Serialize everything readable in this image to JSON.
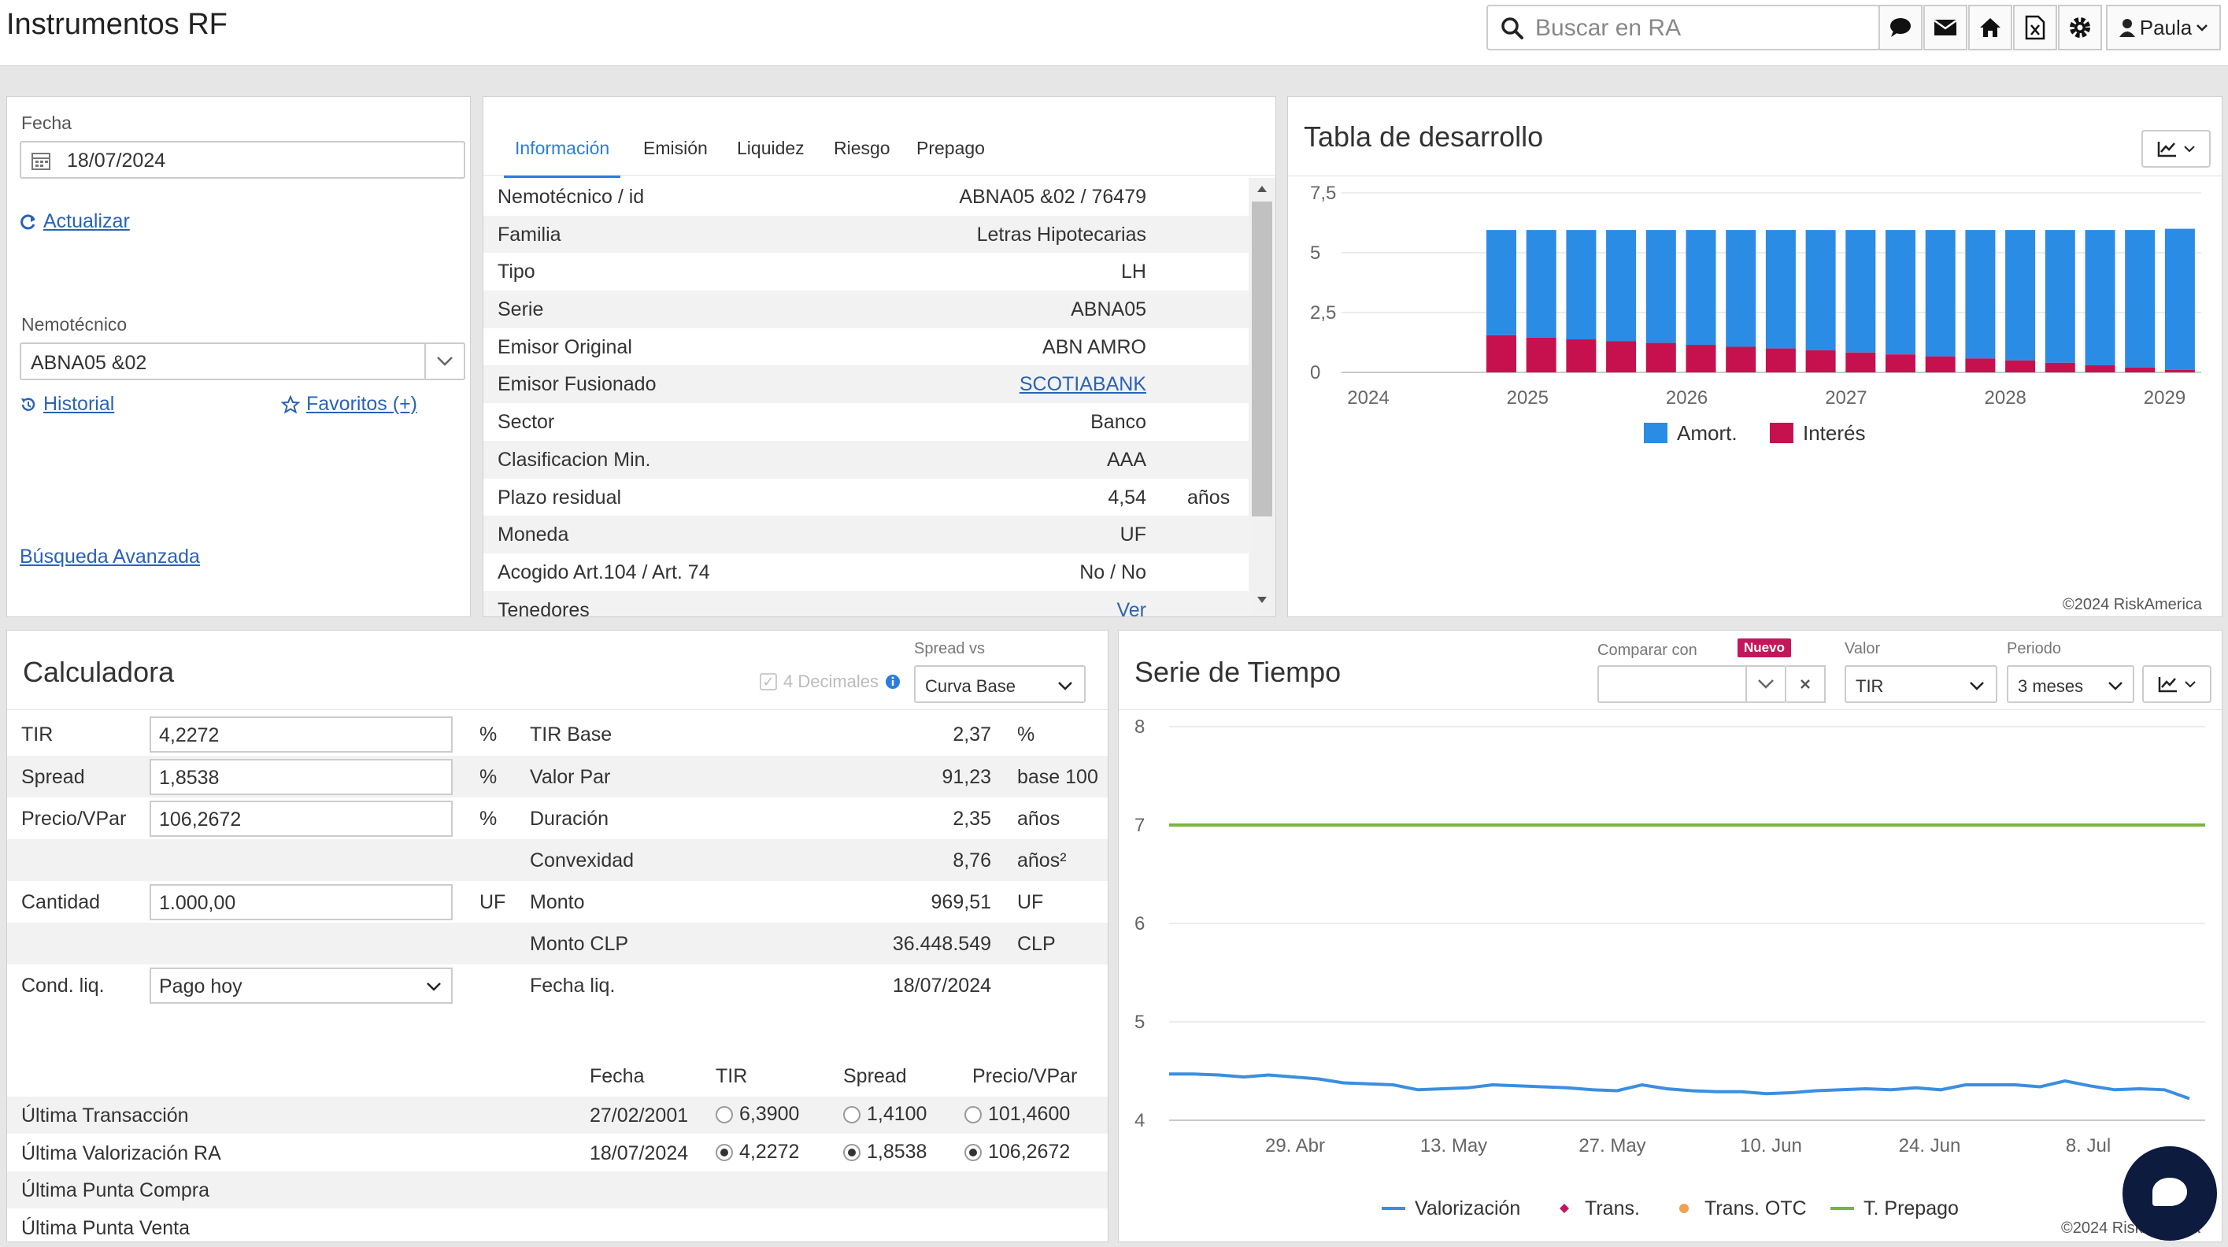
{
  "header": {
    "title": "Instrumentos RF",
    "search_placeholder": "Buscar en RA",
    "user": "Paula",
    "icons": [
      "chat-icon",
      "mail-icon",
      "home-icon",
      "excel-icon",
      "gear-icon"
    ]
  },
  "left": {
    "fecha_label": "Fecha",
    "fecha": "18/07/2024",
    "actualizar": "Actualizar",
    "nemotecnico_label": "Nemotécnico",
    "nemotecnico": "ABNA05 &02",
    "historial": "Historial",
    "favoritos": "Favoritos (+)",
    "busqueda": "Búsqueda Avanzada"
  },
  "info": {
    "tabs": [
      "Información",
      "Emisión",
      "Liquidez",
      "Riesgo",
      "Prepago"
    ],
    "rows": [
      {
        "k": "Nemotécnico / id",
        "v": "ABNA05 &02 / 76479",
        "u": ""
      },
      {
        "k": "Familia",
        "v": "Letras Hipotecarias",
        "u": ""
      },
      {
        "k": "Tipo",
        "v": "LH",
        "u": ""
      },
      {
        "k": "Serie",
        "v": "ABNA05",
        "u": ""
      },
      {
        "k": "Emisor Original",
        "v": "ABN AMRO",
        "u": ""
      },
      {
        "k": "Emisor Fusionado",
        "v": "SCOTIABANK",
        "u": "",
        "link": true
      },
      {
        "k": "Sector",
        "v": "Banco",
        "u": ""
      },
      {
        "k": "Clasificacion Min.",
        "v": "AAA",
        "u": ""
      },
      {
        "k": "Plazo residual",
        "v": "4,54",
        "u": "años"
      },
      {
        "k": "Moneda",
        "v": "UF",
        "u": ""
      },
      {
        "k": "Acogido Art.104 / Art. 74",
        "v": "No / No",
        "u": ""
      },
      {
        "k": "Tenedores",
        "v": "Ver",
        "u": "",
        "link": true
      }
    ]
  },
  "desarrollo": {
    "title": "Tabla de desarrollo",
    "credit": "©2024 RiskAmerica",
    "colors": {
      "amort": "#2b8ce6",
      "interes": "#c7114f"
    },
    "chart_data": {
      "type": "bar",
      "stacked": true,
      "x_ticks": [
        "2024",
        "2025",
        "2026",
        "2027",
        "2028",
        "2029"
      ],
      "y_ticks": [
        "0",
        "2,5",
        "5",
        "7,5"
      ],
      "ylim": [
        0,
        7.5
      ],
      "legend": [
        "Amort.",
        "Interés"
      ],
      "total": [
        5.95,
        5.95,
        5.95,
        5.95,
        5.95,
        5.95,
        5.95,
        5.95,
        5.95,
        5.95,
        5.95,
        5.95,
        5.95,
        5.95,
        5.95,
        5.95,
        5.95,
        6.0
      ],
      "interes": [
        1.55,
        1.45,
        1.38,
        1.3,
        1.23,
        1.15,
        1.07,
        1.0,
        0.92,
        0.83,
        0.75,
        0.67,
        0.58,
        0.5,
        0.4,
        0.3,
        0.2,
        0.1
      ]
    }
  },
  "calc": {
    "title": "Calculadora",
    "decimales": "4 Decimales",
    "spread_vs_label": "Spread vs",
    "spread_vs": "Curva Base",
    "rows": [
      {
        "label": "TIR",
        "input": "4,2272",
        "unit": "%",
        "k": "TIR Base",
        "v": "2,37",
        "u": "%"
      },
      {
        "label": "Spread",
        "input": "1,8538",
        "unit": "%",
        "k": "Valor Par",
        "v": "91,23",
        "u": "base 100"
      },
      {
        "label": "Precio/VPar",
        "input": "106,2672",
        "unit": "%",
        "k": "Duración",
        "v": "2,35",
        "u": "años"
      },
      {
        "label": "",
        "input": "",
        "unit": "",
        "k": "Convexidad",
        "v": "8,76",
        "u": "años²"
      },
      {
        "label": "Cantidad",
        "input": "1.000,00",
        "unit": "UF",
        "k": "Monto",
        "v": "969,51",
        "u": "UF"
      },
      {
        "label": "",
        "input": "",
        "unit": "",
        "k": "Monto CLP",
        "v": "36.448.549",
        "u": "CLP"
      },
      {
        "label": "Cond. liq.",
        "input": "Pago hoy",
        "unit": "",
        "k": "Fecha liq.",
        "v": "18/07/2024",
        "u": ""
      }
    ],
    "hist_headers": [
      "Fecha",
      "TIR",
      "Spread",
      "Precio/VPar"
    ],
    "hist": [
      {
        "label": "Última Transacción",
        "fecha": "27/02/2001",
        "tir": "6,3900",
        "spread": "1,4100",
        "precio": "101,4600",
        "sel": false
      },
      {
        "label": "Última Valorización RA",
        "fecha": "18/07/2024",
        "tir": "4,2272",
        "spread": "1,8538",
        "precio": "106,2672",
        "sel": true
      },
      {
        "label": "Última Punta Compra",
        "fecha": "",
        "tir": "",
        "spread": "",
        "precio": "",
        "sel": false
      },
      {
        "label": "Última Punta Venta",
        "fecha": "",
        "tir": "",
        "spread": "",
        "precio": "",
        "sel": false
      }
    ]
  },
  "serie": {
    "title": "Serie de Tiempo",
    "comparar_label": "Comparar con",
    "nuevo": "Nuevo",
    "valor_label": "Valor",
    "valor": "TIR",
    "periodo_label": "Periodo",
    "periodo": "3 meses",
    "credit": "©2024 RiskAmerica",
    "colors": {
      "valorizacion": "#3b8ee0",
      "trans": "#c2185b",
      "otc": "#f0a050",
      "prepago": "#7cb342"
    },
    "chart_data": {
      "type": "line",
      "x_ticks": [
        "29. Abr",
        "13. May",
        "27. May",
        "10. Jun",
        "24. Jun",
        "8. Jul"
      ],
      "y_ticks": [
        "4",
        "5",
        "6",
        "7",
        "8"
      ],
      "ylim": [
        4,
        8
      ],
      "legend": [
        "Valorización",
        "Trans.",
        "Trans. OTC",
        "T. Prepago"
      ],
      "prepago": 7.0,
      "valorizacion": [
        4.47,
        4.47,
        4.46,
        4.44,
        4.46,
        4.44,
        4.42,
        4.38,
        4.37,
        4.36,
        4.31,
        4.32,
        4.33,
        4.36,
        4.35,
        4.34,
        4.33,
        4.31,
        4.3,
        4.36,
        4.32,
        4.3,
        4.29,
        4.29,
        4.27,
        4.28,
        4.3,
        4.31,
        4.32,
        4.31,
        4.33,
        4.31,
        4.36,
        4.36,
        4.36,
        4.34,
        4.4,
        4.35,
        4.31,
        4.32,
        4.31,
        4.22
      ]
    }
  }
}
